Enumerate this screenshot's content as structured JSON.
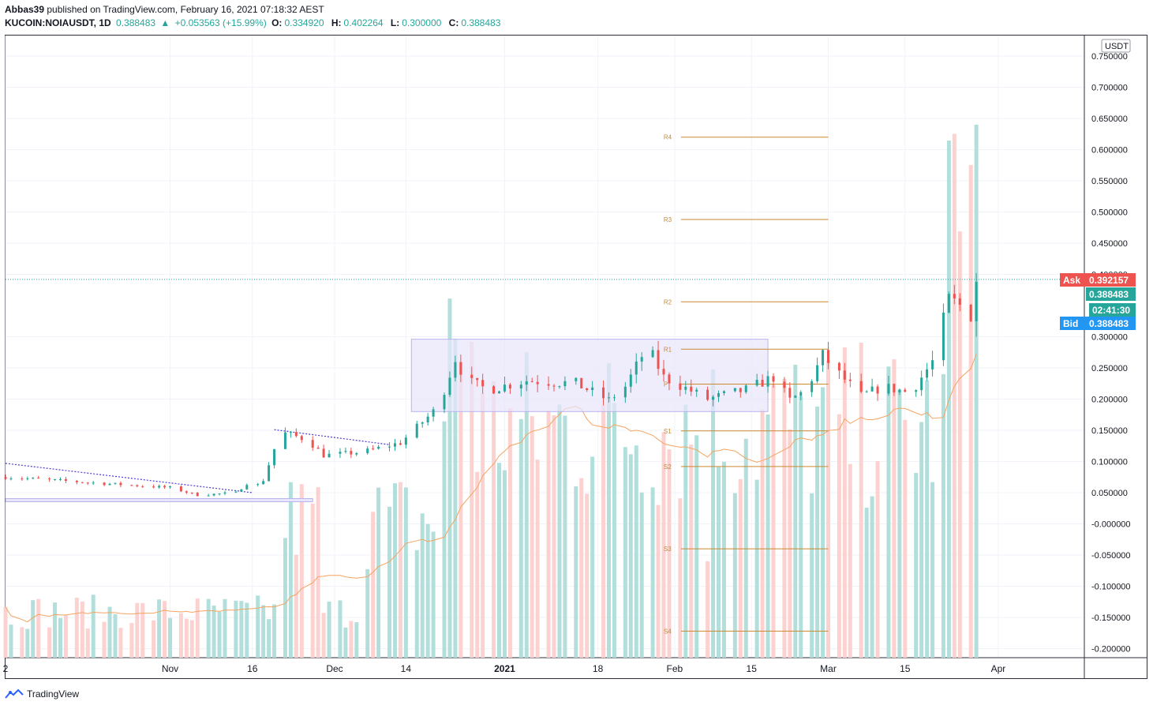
{
  "header": {
    "publisher": "Abbas39",
    "published_text": "published on TradingView.com, February 16, 2021 07:18:32 AEST",
    "symbol": "KUCOIN:NOIAUSDT, 1D",
    "last": "0.388483",
    "change_arrow": "▲",
    "change": "+0.053563 (+15.99%)",
    "o_label": "O:",
    "o_value": "0.334920",
    "h_label": "H:",
    "h_value": "0.402264",
    "l_label": "L:",
    "l_value": "0.300000",
    "c_label": "C:",
    "c_value": "0.388483"
  },
  "footer": {
    "brand": "TradingView"
  },
  "colors": {
    "up": "#26a69a",
    "down": "#ef5350",
    "up_vol": "#b2dfdb",
    "down_vol": "#fcd2d0",
    "pivot": "#c9892f",
    "ma": "#f4a460",
    "ask_bg": "#ef5350",
    "last_bg": "#26a69a",
    "bid_bg": "#2196f3",
    "range_fill": "#e8e6fb",
    "range_border": "#b9b3ee",
    "trend": "#4a3cd8",
    "grid": "#f0f3fa"
  },
  "chart_data": {
    "type": "candlestick",
    "currency_label": "USDT",
    "y_ticks": [
      "0.750000",
      "0.700000",
      "0.650000",
      "0.600000",
      "0.550000",
      "0.500000",
      "0.450000",
      "0.400000",
      "0.300000",
      "0.250000",
      "0.200000",
      "0.150000",
      "0.100000",
      "0.050000",
      "-0.000000",
      "-0.050000",
      "-0.100000",
      "-0.150000",
      "-0.200000"
    ],
    "y_tick_values": [
      0.75,
      0.7,
      0.65,
      0.6,
      0.55,
      0.5,
      0.45,
      0.4,
      0.3,
      0.25,
      0.2,
      0.15,
      0.1,
      0.05,
      0.0,
      -0.05,
      -0.1,
      -0.15,
      -0.2
    ],
    "x_ticks": [
      {
        "label": "2",
        "date": "2020-10-02"
      },
      {
        "label": "Nov",
        "date": "2020-11-01"
      },
      {
        "label": "16",
        "date": "2020-11-16"
      },
      {
        "label": "Dec",
        "date": "2020-12-01"
      },
      {
        "label": "14",
        "date": "2020-12-14"
      },
      {
        "label": "2021",
        "date": "2021-01-01"
      },
      {
        "label": "18",
        "date": "2021-01-18"
      },
      {
        "label": "Feb",
        "date": "2021-02-01"
      },
      {
        "label": "15",
        "date": "2021-02-15"
      },
      {
        "label": "Mar",
        "date": "2021-03-01"
      },
      {
        "label": "15",
        "date": "2021-03-15"
      },
      {
        "label": "Apr",
        "date": "2021-04-01"
      }
    ],
    "price_tags": {
      "ask_label": "Ask",
      "ask_value": "0.392157",
      "last_value": "0.388483",
      "countdown": "02:41:30",
      "bid_label": "Bid",
      "bid_value": "0.388483"
    },
    "pivots": [
      {
        "name": "R4",
        "value": 0.62
      },
      {
        "name": "R3",
        "value": 0.488
      },
      {
        "name": "R2",
        "value": 0.356
      },
      {
        "name": "R1",
        "value": 0.28
      },
      {
        "name": "P",
        "value": 0.224
      },
      {
        "name": "S1",
        "value": 0.149
      },
      {
        "name": "S2",
        "value": 0.092
      },
      {
        "name": "S3",
        "value": -0.04
      },
      {
        "name": "S4",
        "value": -0.172
      }
    ],
    "pivot_start": "2021-02-01",
    "pivot_end": "2021-03-01",
    "range_box": {
      "start": "2020-12-15",
      "end": "2021-02-18",
      "top": 0.296,
      "bottom": 0.18
    },
    "trendlines": [
      {
        "start": "2020-10-02",
        "start_value": 0.097,
        "end": "2020-11-16",
        "end_value": 0.05
      },
      {
        "start": "2020-11-20",
        "start_value": 0.151,
        "end": "2020-12-11",
        "end_value": 0.127
      }
    ],
    "support_band": {
      "start": "2020-10-02",
      "end": "2020-11-27",
      "value": 0.038
    },
    "dotted_price": 0.392,
    "volume": {
      "max_height_value": 0.64,
      "ma_period": 20
    }
  }
}
